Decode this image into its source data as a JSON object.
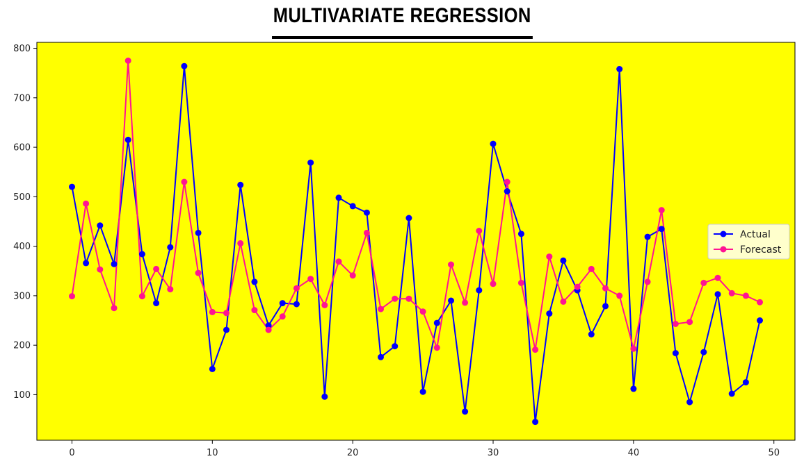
{
  "title": "MULTIVARIATE REGRESSION",
  "chart_data": {
    "type": "line",
    "title": "MULTIVARIATE REGRESSION",
    "xlabel": "",
    "ylabel": "",
    "xlim": [
      -2.5,
      51.5
    ],
    "ylim": [
      8,
      812
    ],
    "xticks": [
      0,
      10,
      20,
      30,
      40,
      50
    ],
    "yticks": [
      100,
      200,
      300,
      400,
      500,
      600,
      700,
      800
    ],
    "background": "#ffff00",
    "grid": false,
    "legend_position": "right",
    "x": [
      0,
      1,
      2,
      3,
      4,
      5,
      6,
      7,
      8,
      9,
      10,
      11,
      12,
      13,
      14,
      15,
      16,
      17,
      18,
      19,
      20,
      21,
      22,
      23,
      24,
      25,
      26,
      27,
      28,
      29,
      30,
      31,
      32,
      33,
      34,
      35,
      36,
      37,
      38,
      39,
      40,
      41,
      42,
      43,
      44,
      45,
      46,
      47,
      48,
      49
    ],
    "series": [
      {
        "name": "Actual",
        "color": "#0000ff",
        "marker": "circle",
        "values": [
          520,
          366,
          442,
          364,
          615,
          384,
          285,
          398,
          764,
          427,
          152,
          231,
          524,
          328,
          240,
          285,
          283,
          569,
          96,
          498,
          481,
          468,
          176,
          198,
          457,
          106,
          245,
          290,
          66,
          311,
          607,
          511,
          425,
          45,
          264,
          371,
          311,
          222,
          279,
          758,
          112,
          419,
          435,
          184,
          85,
          186,
          303,
          102,
          125,
          250
        ]
      },
      {
        "name": "Forecast",
        "color": "#ff1493",
        "marker": "circle",
        "values": [
          299,
          486,
          353,
          275,
          775,
          299,
          354,
          313,
          530,
          346,
          267,
          265,
          406,
          271,
          231,
          258,
          315,
          334,
          281,
          369,
          341,
          427,
          273,
          294,
          294,
          268,
          195,
          363,
          286,
          431,
          324,
          530,
          326,
          191,
          379,
          288,
          318,
          354,
          315,
          300,
          193,
          328,
          473,
          243,
          247,
          326,
          336,
          305,
          300,
          287
        ]
      }
    ]
  }
}
